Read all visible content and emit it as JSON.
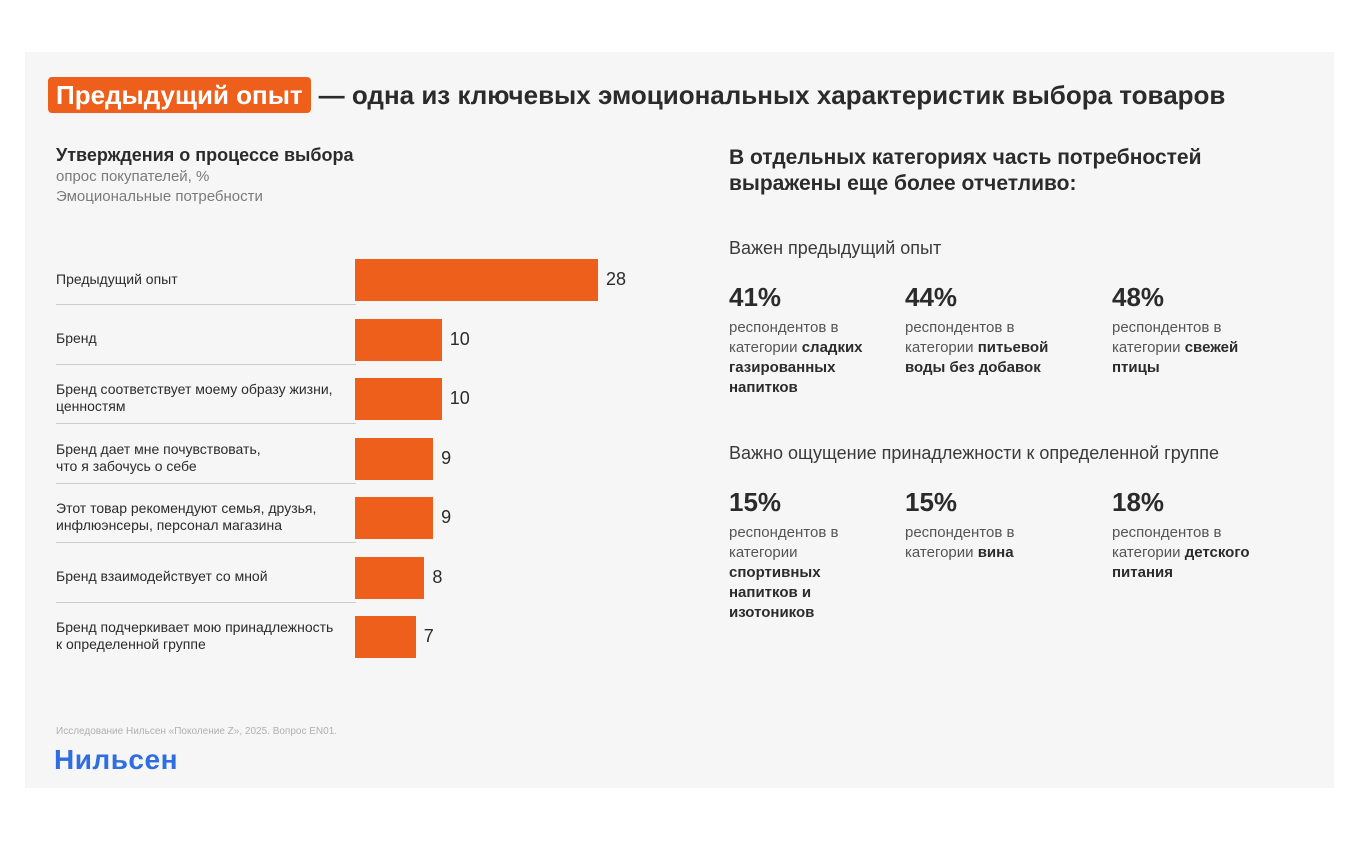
{
  "headline": {
    "highlight": "Предыдущий опыт",
    "rest": "— одна из ключевых эмоциональных характеристик выбора товаров"
  },
  "colors": {
    "accent": "#ee5f1b",
    "brand": "#2f6de1"
  },
  "chart_data": {
    "type": "bar",
    "orientation": "horizontal",
    "title": "Утверждения о процессе выбора",
    "subtitle": [
      "опрос покупателей, %",
      "Эмоциональные потребности"
    ],
    "categories": [
      "Предыдущий опыт",
      "Бренд",
      "Бренд соответствует моему образу жизни, ценностям",
      "Бренд дает мне почувствовать, что я забочусь о себе",
      "Этот товар рекомендуют семья, друзья, инфлюэнсеры, персонал магазина",
      "Бренд взаимодействует со мной",
      "Бренд подчеркивает мою принадлежность к определенной группе"
    ],
    "category_lines": [
      [
        "Предыдущий опыт"
      ],
      [
        "Бренд"
      ],
      [
        "Бренд соответствует моему образу жизни,",
        "ценностям"
      ],
      [
        "Бренд дает мне почувствовать,",
        "что я забочусь о себе"
      ],
      [
        "Этот товар рекомендуют семья, друзья,",
        "инфлюэнсеры, персонал магазина"
      ],
      [
        "Бренд взаимодействует со мной"
      ],
      [
        "Бренд подчеркивает мою принадлежность",
        "к определенной группе"
      ]
    ],
    "values": [
      28,
      10,
      10,
      9,
      9,
      8,
      7
    ],
    "xlim": [
      0,
      28
    ],
    "grid": false,
    "legend": "none"
  },
  "right": {
    "title": "В отдельных категориях часть потребностей выражены еще более отчетливо:",
    "sections": [
      {
        "title": "Важен предыдущий опыт",
        "stats": [
          {
            "pct": "41%",
            "pre": "респондентов в категории ",
            "bold": "сладких газированных напитков"
          },
          {
            "pct": "44%",
            "pre": "респондентов в категории ",
            "bold": "питьевой воды без добавок"
          },
          {
            "pct": "48%",
            "pre": "респондентов в категории ",
            "bold": "свежей птицы"
          }
        ]
      },
      {
        "title": "Важно ощущение принадлежности к определенной группе",
        "stats": [
          {
            "pct": "15%",
            "pre": "респондентов в категории ",
            "bold": "спортивных напитков и изотоников"
          },
          {
            "pct": "15%",
            "pre": "респондентов в категории ",
            "bold": "вина"
          },
          {
            "pct": "18%",
            "pre": "респондентов в категории ",
            "bold": "детского питания"
          }
        ]
      }
    ]
  },
  "footnote": "Исследование Нильсен «Поколение Z», 2025. Вопрос EN01.",
  "logo": "Нильсен"
}
